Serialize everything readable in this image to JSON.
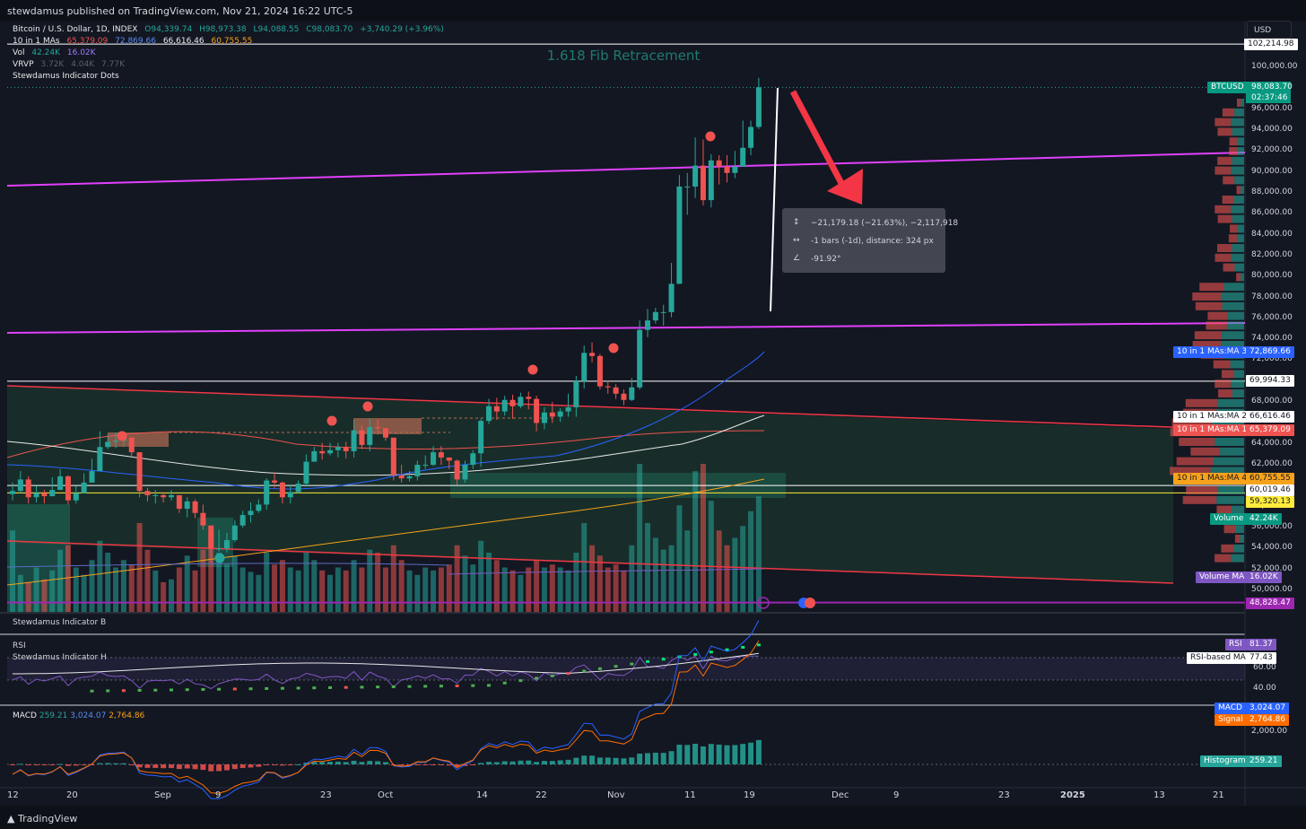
{
  "header": {
    "publisher": "stewdamus published on TradingView.com, Nov 21, 2024 16:22 UTC-5",
    "currency": "USD",
    "footer_brand": "TradingView"
  },
  "legend": {
    "symbol": "Bitcoin / U.S. Dollar, 1D, INDEX",
    "open": "O94,339.74",
    "high": "H98,973.38",
    "low": "L94,088.55",
    "close": "C98,083.70",
    "change": "+3,740.29 (+3.96%)",
    "ma_name": "10 in 1 MAs",
    "ma_v1": "65,379.09",
    "ma_v2": "72,869.66",
    "ma_v3": "66,616.46",
    "ma_v4": "60,755.55",
    "vol_name": "Vol",
    "vol_v1": "42.24K",
    "vol_v2": "16.02K",
    "vrvp_name": "VRVP",
    "vrvp_v1": "3.72K",
    "vrvp_v2": "4.04K",
    "vrvp_v3": "7.77K",
    "dots_name": "Stewdamus Indicator Dots"
  },
  "annotation": {
    "fib_title": "1.618 Fib Retracement",
    "measure_line1": "−21,179.18 (−21.63%), −2,117,918",
    "measure_line2": "-1 bars (-1d), distance: 324 px",
    "measure_line3": "-91.92°"
  },
  "price_tags": {
    "top": "102,214.98",
    "btc_label": "BTCUSD",
    "btc_price": "98,083.70",
    "btc_countdown": "02:37:46",
    "ma3_label": "10 in 1 MAs:MA 3",
    "ma3_value": "72,869.66",
    "level_69994": "69,994.33",
    "ma2_label": "10 in 1 MAs:MA 2",
    "ma2_value": "66,616.46",
    "ma1_label": "10 in 1 MAs:MA 1",
    "ma1_value": "65,379.09",
    "ma4_label": "10 in 1 MAs:MA 4",
    "ma4_value": "60,755.55",
    "level_60019": "60,019.46",
    "level_59320": "59,320.13",
    "volume_label": "Volume",
    "volume_value": "42.24K",
    "volma_label": "Volume MA",
    "volma_value": "16.02K",
    "level_48828": "48,828.47"
  },
  "panels": {
    "indicator_b": "Stewdamus Indicator B",
    "rsi_name": "RSI",
    "indicator_h": "Stewdamus Indicator H",
    "rsi_tag": "RSI",
    "rsi_value": "81.37",
    "rsi_ma_tag": "RSI-based MA",
    "rsi_ma_value": "77.43",
    "macd_name": "MACD",
    "macd_v1": "259.21",
    "macd_v2": "3,024.07",
    "macd_v3": "2,764.86",
    "macd_tag": "MACD",
    "macd_value": "3,024.07",
    "signal_tag": "Signal",
    "signal_value": "2,764.86",
    "hist_tag": "Histogram",
    "hist_value": "259.21"
  },
  "chart_data": {
    "type": "candlestick",
    "title": "Bitcoin / U.S. Dollar, 1D, INDEX",
    "x_tick_labels": [
      "12",
      "20",
      "Sep",
      "9",
      "23",
      "Oct",
      "14",
      "22",
      "Nov",
      "11",
      "19",
      "Dec",
      "9",
      "23",
      "2025",
      "13",
      "21"
    ],
    "y_tick_labels": [
      "100,000.00",
      "96,000.00",
      "94,000.00",
      "92,000.00",
      "90,000.00",
      "88,000.00",
      "86,000.00",
      "84,000.00",
      "82,000.00",
      "80,000.00",
      "78,000.00",
      "76,000.00",
      "74,000.00",
      "72,000.00",
      "68,000.00",
      "64,000.00",
      "62,000.00",
      "58,000.00",
      "56,000.00",
      "54,000.00",
      "52,000.00",
      "50,000.00"
    ],
    "rsi_ticks": [
      "60.00",
      "40.00"
    ],
    "macd_ticks": [
      "2,000.00"
    ],
    "ylim": [
      47500,
      103200
    ],
    "close": [
      59500,
      60600,
      58900,
      59300,
      59000,
      59600,
      60900,
      58600,
      59300,
      60300,
      61400,
      63700,
      64200,
      64300,
      64600,
      63200,
      59500,
      59100,
      59100,
      58900,
      59100,
      57800,
      58500,
      57400,
      56200,
      54000,
      54000,
      54800,
      56200,
      57200,
      57600,
      58200,
      60500,
      60300,
      58900,
      59400,
      60200,
      62300,
      63300,
      63100,
      63400,
      63700,
      63300,
      65300,
      63900,
      65600,
      65500,
      64600,
      61000,
      60700,
      60900,
      62000,
      62000,
      63200,
      62700,
      62400,
      60600,
      62000,
      63100,
      66200,
      67600,
      67100,
      68200,
      67600,
      68500,
      68300,
      66000,
      67000,
      66600,
      67100,
      67500,
      70000,
      72700,
      72400,
      69500,
      69400,
      68800,
      68200,
      69400,
      74900,
      75800,
      76600,
      76600,
      79300,
      88600,
      88600,
      90600,
      87300,
      91100,
      90500,
      89900,
      90500,
      92300,
      94300,
      98084
    ],
    "high": [
      60300,
      61400,
      60900,
      60000,
      59600,
      60800,
      61600,
      61000,
      60000,
      61200,
      62600,
      65200,
      64900,
      65100,
      64900,
      64700,
      62200,
      59800,
      59600,
      59400,
      59600,
      59100,
      58900,
      58700,
      58200,
      56000,
      55800,
      55500,
      56700,
      57600,
      58400,
      58700,
      60700,
      61300,
      60400,
      60100,
      60500,
      63000,
      63700,
      64100,
      64100,
      64100,
      64200,
      66300,
      65800,
      66400,
      66300,
      65400,
      64200,
      62000,
      61400,
      62400,
      62900,
      63800,
      63800,
      62700,
      62500,
      62400,
      63400,
      66400,
      68300,
      68400,
      68600,
      68700,
      68900,
      69000,
      68600,
      67500,
      68000,
      67400,
      68800,
      70500,
      73400,
      73700,
      72600,
      70000,
      69700,
      69200,
      70300,
      75800,
      76900,
      77000,
      77300,
      81300,
      89700,
      89900,
      93300,
      93100,
      91700,
      91600,
      91600,
      92000,
      94900,
      94900,
      99000
    ],
    "low": [
      58600,
      59300,
      58300,
      58400,
      58300,
      59000,
      59700,
      58200,
      58300,
      59500,
      61100,
      61900,
      63500,
      63600,
      63700,
      62800,
      58900,
      58500,
      58300,
      58400,
      58600,
      57400,
      57000,
      56900,
      55800,
      52600,
      53700,
      53600,
      54600,
      56000,
      56500,
      57400,
      57700,
      59800,
      58300,
      58300,
      59300,
      59900,
      62500,
      62500,
      62900,
      62700,
      62600,
      62700,
      63500,
      63300,
      64900,
      64300,
      60500,
      60300,
      60400,
      60500,
      61600,
      61900,
      62000,
      61600,
      60100,
      60300,
      61600,
      61800,
      65900,
      66300,
      66700,
      66400,
      67400,
      67300,
      65200,
      65400,
      66000,
      66100,
      66600,
      66600,
      69300,
      71800,
      69200,
      68800,
      68300,
      67700,
      68100,
      69200,
      74200,
      75500,
      75300,
      76100,
      79300,
      85900,
      87500,
      86800,
      86600,
      88800,
      89000,
      89400,
      90500,
      91600,
      94100
    ],
    "volume": [
      0.55,
      0.25,
      0.2,
      0.3,
      0.22,
      0.28,
      0.42,
      0.45,
      0.3,
      0.25,
      0.35,
      0.48,
      0.4,
      0.3,
      0.35,
      0.32,
      0.6,
      0.42,
      0.28,
      0.2,
      0.22,
      0.3,
      0.38,
      0.28,
      0.42,
      0.55,
      0.4,
      0.32,
      0.38,
      0.3,
      0.27,
      0.25,
      0.4,
      0.32,
      0.35,
      0.3,
      0.28,
      0.4,
      0.35,
      0.28,
      0.25,
      0.3,
      0.28,
      0.35,
      0.3,
      0.42,
      0.4,
      0.3,
      0.45,
      0.35,
      0.28,
      0.25,
      0.3,
      0.28,
      0.3,
      0.32,
      0.45,
      0.38,
      0.32,
      0.48,
      0.4,
      0.35,
      0.3,
      0.28,
      0.25,
      0.3,
      0.35,
      0.3,
      0.32,
      0.3,
      0.28,
      0.4,
      0.6,
      0.45,
      0.38,
      0.3,
      0.32,
      0.28,
      0.45,
      1.0,
      0.6,
      0.5,
      0.42,
      0.45,
      0.72,
      0.55,
      0.95,
      1.0,
      0.75,
      0.55,
      0.45,
      0.5,
      0.58,
      0.68,
      0.78
    ],
    "moving_averages": [
      {
        "name": "10 in 1 MAs:MA 1",
        "value": 65379.09,
        "color": "#ef5350"
      },
      {
        "name": "10 in 1 MAs:MA 2",
        "value": 66616.46,
        "color": "#e8e8e8"
      },
      {
        "name": "10 in 1 MAs:MA 3",
        "value": 72869.66,
        "color": "#2962ff"
      },
      {
        "name": "10 in 1 MAs:MA 4",
        "value": 60755.55,
        "color": "#f7a21b"
      }
    ],
    "horizontal_levels": [
      102214.98,
      69994.33,
      60019.46,
      59320.13,
      48828.47
    ],
    "rsi": {
      "value": 81.37,
      "ma": 77.43,
      "color": "#7e57c2"
    },
    "macd": {
      "macd": 3024.07,
      "signal": 2764.86,
      "histogram": 259.21
    },
    "colors": {
      "up": "#26a69a",
      "down": "#ef5350",
      "channel": "#e040fb",
      "downtrend": "#f23645",
      "arrow": "#f23645"
    }
  }
}
